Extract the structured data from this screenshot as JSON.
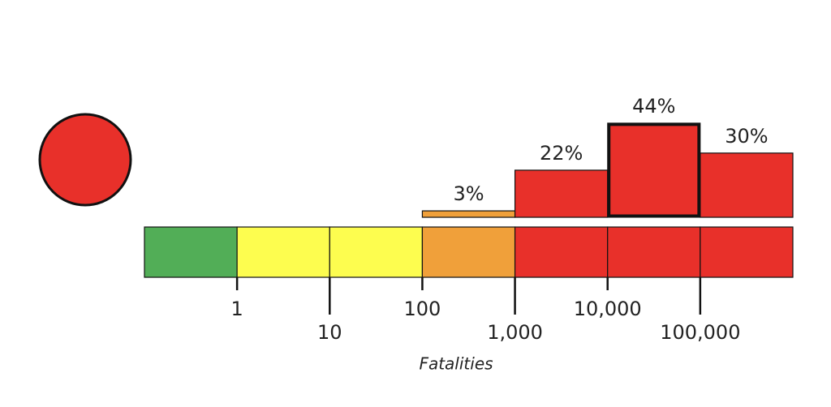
{
  "chart_data": {
    "type": "histogram",
    "x_label": "Fatalities",
    "log_x": true,
    "bins": [
      0.1,
      1,
      10,
      100,
      1000,
      10000,
      100000,
      1000000
    ],
    "values": [
      0,
      0,
      0,
      3,
      22,
      44,
      30
    ],
    "value_labels": [
      null,
      null,
      null,
      "3%",
      "22%",
      "44%",
      "30%"
    ],
    "colors": [
      "#52ae57",
      "#fdfd4f",
      "#fdfd4f",
      "#f0a03a",
      "#e8302a",
      "#e8302a",
      "#e8302a"
    ],
    "highlight": 5,
    "alert_color": "#e8302a",
    "xlim": [
      0.1,
      1000000
    ],
    "xticks": [
      1,
      10,
      100,
      {
        "value": 1000,
        "label": "1,000"
      },
      {
        "value": 10000,
        "label": "10,000"
      },
      {
        "value": 100000,
        "label": "100,000"
      }
    ]
  }
}
